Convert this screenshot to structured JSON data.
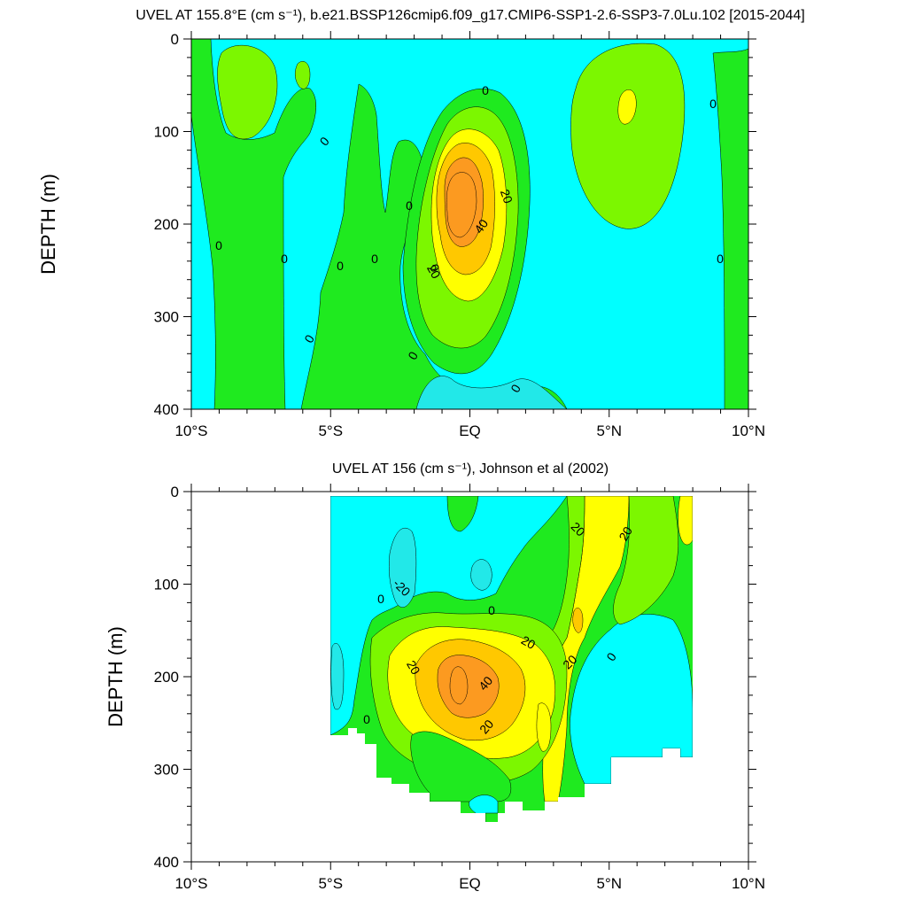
{
  "chart_data": [
    {
      "type": "contour",
      "title": "UVEL AT 155.8°E (cm s⁻¹), b.e21.BSSP126cmip6.f09_g17.CMIP6-SSP1-2.6-SSP3-7.0Lu.102 [2015-2044]",
      "ylabel": "DEPTH (m)",
      "xlabel": "",
      "xlim": [
        -10,
        10
      ],
      "ylim": [
        400,
        0
      ],
      "x_ticks": [
        -10,
        -5,
        0,
        5,
        10
      ],
      "x_tick_labels": [
        "10°S",
        "5°S",
        "EQ",
        "5°N",
        "10°N"
      ],
      "y_ticks": [
        0,
        100,
        200,
        300,
        400
      ],
      "y_tick_labels": [
        "0",
        "100",
        "200",
        "300",
        "400"
      ],
      "contour_interval": 10,
      "color_levels": [
        {
          "range": [
            -20,
            -10
          ],
          "color": "#22e8e8"
        },
        {
          "range": [
            -10,
            0
          ],
          "color": "#00ffff"
        },
        {
          "range": [
            0,
            10
          ],
          "color": "#1fea1f"
        },
        {
          "range": [
            10,
            20
          ],
          "color": "#7cf700"
        },
        {
          "range": [
            20,
            30
          ],
          "color": "#ffff00"
        },
        {
          "range": [
            30,
            40
          ],
          "color": "#ffc800"
        },
        {
          "range": [
            40,
            50
          ],
          "color": "#fc9a20"
        }
      ],
      "core": {
        "lat": -0.4,
        "depth": 180,
        "max_speed_cm_s": 45
      },
      "contour_labels": [
        "0",
        "0",
        "0",
        "0",
        "0",
        "0",
        "0",
        "0",
        "0",
        "0",
        "0",
        "0",
        "0",
        "20",
        "20",
        "40"
      ]
    },
    {
      "type": "contour",
      "title": "UVEL AT 156 (cm s⁻¹), Johnson et al (2002)",
      "ylabel": "DEPTH (m)",
      "xlabel": "",
      "xlim": [
        -10,
        10
      ],
      "ylim": [
        400,
        0
      ],
      "x_ticks": [
        -10,
        -5,
        0,
        5,
        10
      ],
      "x_tick_labels": [
        "10°S",
        "5°S",
        "EQ",
        "5°N",
        "10°N"
      ],
      "y_ticks": [
        0,
        100,
        200,
        300,
        400
      ],
      "y_tick_labels": [
        "0",
        "100",
        "200",
        "300",
        "400"
      ],
      "data_extent": {
        "lat": [
          -5,
          8
        ],
        "depth": [
          0,
          350
        ]
      },
      "core": {
        "lat": -0.4,
        "depth": 205,
        "max_speed_cm_s": 45
      },
      "contour_labels": [
        "20",
        "20",
        "-20",
        "0",
        "0",
        "0",
        "20",
        "20",
        "40",
        "20",
        "20",
        "0"
      ]
    }
  ]
}
